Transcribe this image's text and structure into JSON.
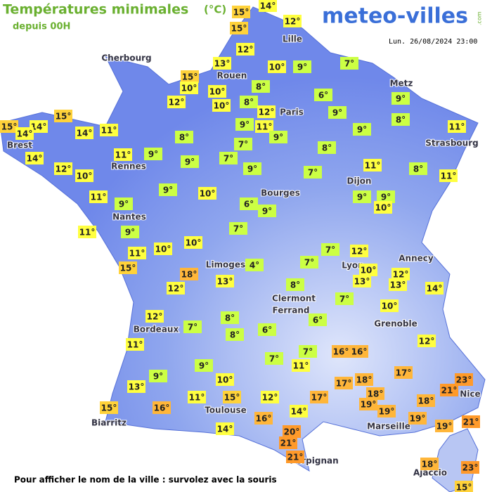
{
  "header": {
    "title": "Températures minimales",
    "unit": "(°C)",
    "subtitle": "depuis 00H",
    "logo": "meteo-villes",
    "logo_suffix": ".com",
    "date": "Lun. 26/08/2024 23:00"
  },
  "footer": "Pour afficher le nom de la ville : survolez avec la souris",
  "cities": [
    "Cherbourg",
    "Lille",
    "Rouen",
    "Paris",
    "Metz",
    "Brest",
    "Rennes",
    "Strasbourg",
    "Dijon",
    "Bourges",
    "Nantes",
    "Annecy",
    "Limoges",
    "Lyon",
    "Clermont",
    "Ferrand",
    "Grenoble",
    "Bordeaux",
    "Nice",
    "Toulouse",
    "Marseille",
    "Biarritz",
    "Perpignan",
    "Ajaccio"
  ],
  "temps": [
    "15°",
    "14°",
    "15°",
    "12°",
    "12°",
    "7°",
    "13°",
    "10°",
    "9°",
    "15°",
    "10°",
    "10°",
    "8°",
    "10°",
    "8°",
    "6°",
    "9°",
    "12°",
    "12°",
    "9°",
    "8°",
    "15°",
    "15°",
    "14°",
    "14°",
    "14°",
    "11°",
    "9°",
    "11°",
    "9°",
    "11°",
    "8°",
    "9°",
    "7°",
    "8°",
    "11°",
    "9°",
    "14°",
    "9°",
    "7°",
    "11°",
    "12°",
    "9°",
    "7°",
    "8°",
    "10°",
    "11°",
    "9°",
    "10°",
    "11°",
    "9°",
    "9°",
    "9°",
    "6°",
    "9°",
    "10°",
    "11°",
    "9°",
    "7°",
    "10°",
    "10°",
    "7°",
    "12°",
    "11°",
    "15°",
    "4°",
    "7°",
    "10°",
    "12°",
    "18°",
    "13°",
    "13°",
    "13°",
    "12°",
    "14°",
    "8°",
    "7°",
    "10°",
    "12°",
    "8°",
    "7°",
    "6°",
    "6°",
    "8°",
    "11°",
    "12°",
    "7°",
    "16°",
    "16°",
    "7°",
    "11°",
    "9°",
    "17°",
    "9°",
    "10°",
    "23°",
    "13°",
    "17°",
    "18°",
    "21°",
    "18°",
    "17°",
    "12°",
    "11°",
    "15°",
    "19°",
    "19°",
    "18°",
    "15°",
    "16°",
    "14°",
    "19°",
    "16°",
    "21°",
    "19°",
    "14°",
    "20°",
    "21°",
    "21°",
    "18°",
    "23°",
    "15°"
  ]
}
